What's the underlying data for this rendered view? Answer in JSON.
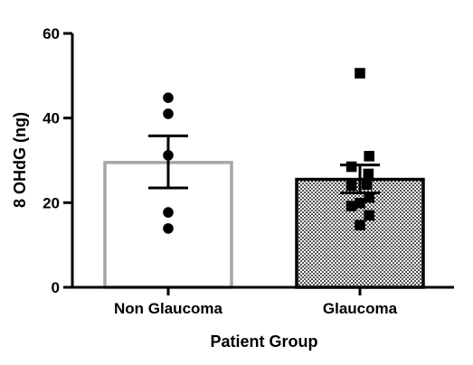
{
  "chart_data": {
    "type": "bar",
    "xlabel": "Patient Group",
    "ylabel": "8 OHdG (ng)",
    "ylim": [
      0,
      60
    ],
    "yticks": [
      0,
      20,
      40,
      60
    ],
    "grid": false,
    "categories": [
      "Non Glaucoma",
      "Glaucoma"
    ],
    "bars": [
      {
        "category": "Non Glaucoma",
        "mean": 29.5,
        "error_upper": 35.8,
        "error_lower": 23.5,
        "fill": "#ffffff",
        "stroke": "#a6a6a6",
        "pattern": "none",
        "marker": "circle",
        "points": [
          {
            "x": 0.0,
            "y": 44.8
          },
          {
            "x": 0.0,
            "y": 41.0
          },
          {
            "x": 0.0,
            "y": 31.2
          },
          {
            "x": 0.0,
            "y": 17.7
          },
          {
            "x": 0.0,
            "y": 13.9
          }
        ]
      },
      {
        "category": "Glaucoma",
        "mean": 25.5,
        "error_upper": 28.9,
        "error_lower": 22.3,
        "fill": "#d9d9d9",
        "stroke": "#000000",
        "pattern": "checker",
        "marker": "square",
        "points": [
          {
            "x": 0.0,
            "y": 50.6
          },
          {
            "x": 0.12,
            "y": 31.0
          },
          {
            "x": -0.11,
            "y": 28.5
          },
          {
            "x": 0.11,
            "y": 26.8
          },
          {
            "x": -0.11,
            "y": 24.0
          },
          {
            "x": 0.09,
            "y": 24.3
          },
          {
            "x": 0.12,
            "y": 21.2
          },
          {
            "x": 0.0,
            "y": 19.9
          },
          {
            "x": -0.11,
            "y": 19.2
          },
          {
            "x": 0.12,
            "y": 17.0
          },
          {
            "x": 0.0,
            "y": 14.7
          }
        ]
      }
    ]
  }
}
